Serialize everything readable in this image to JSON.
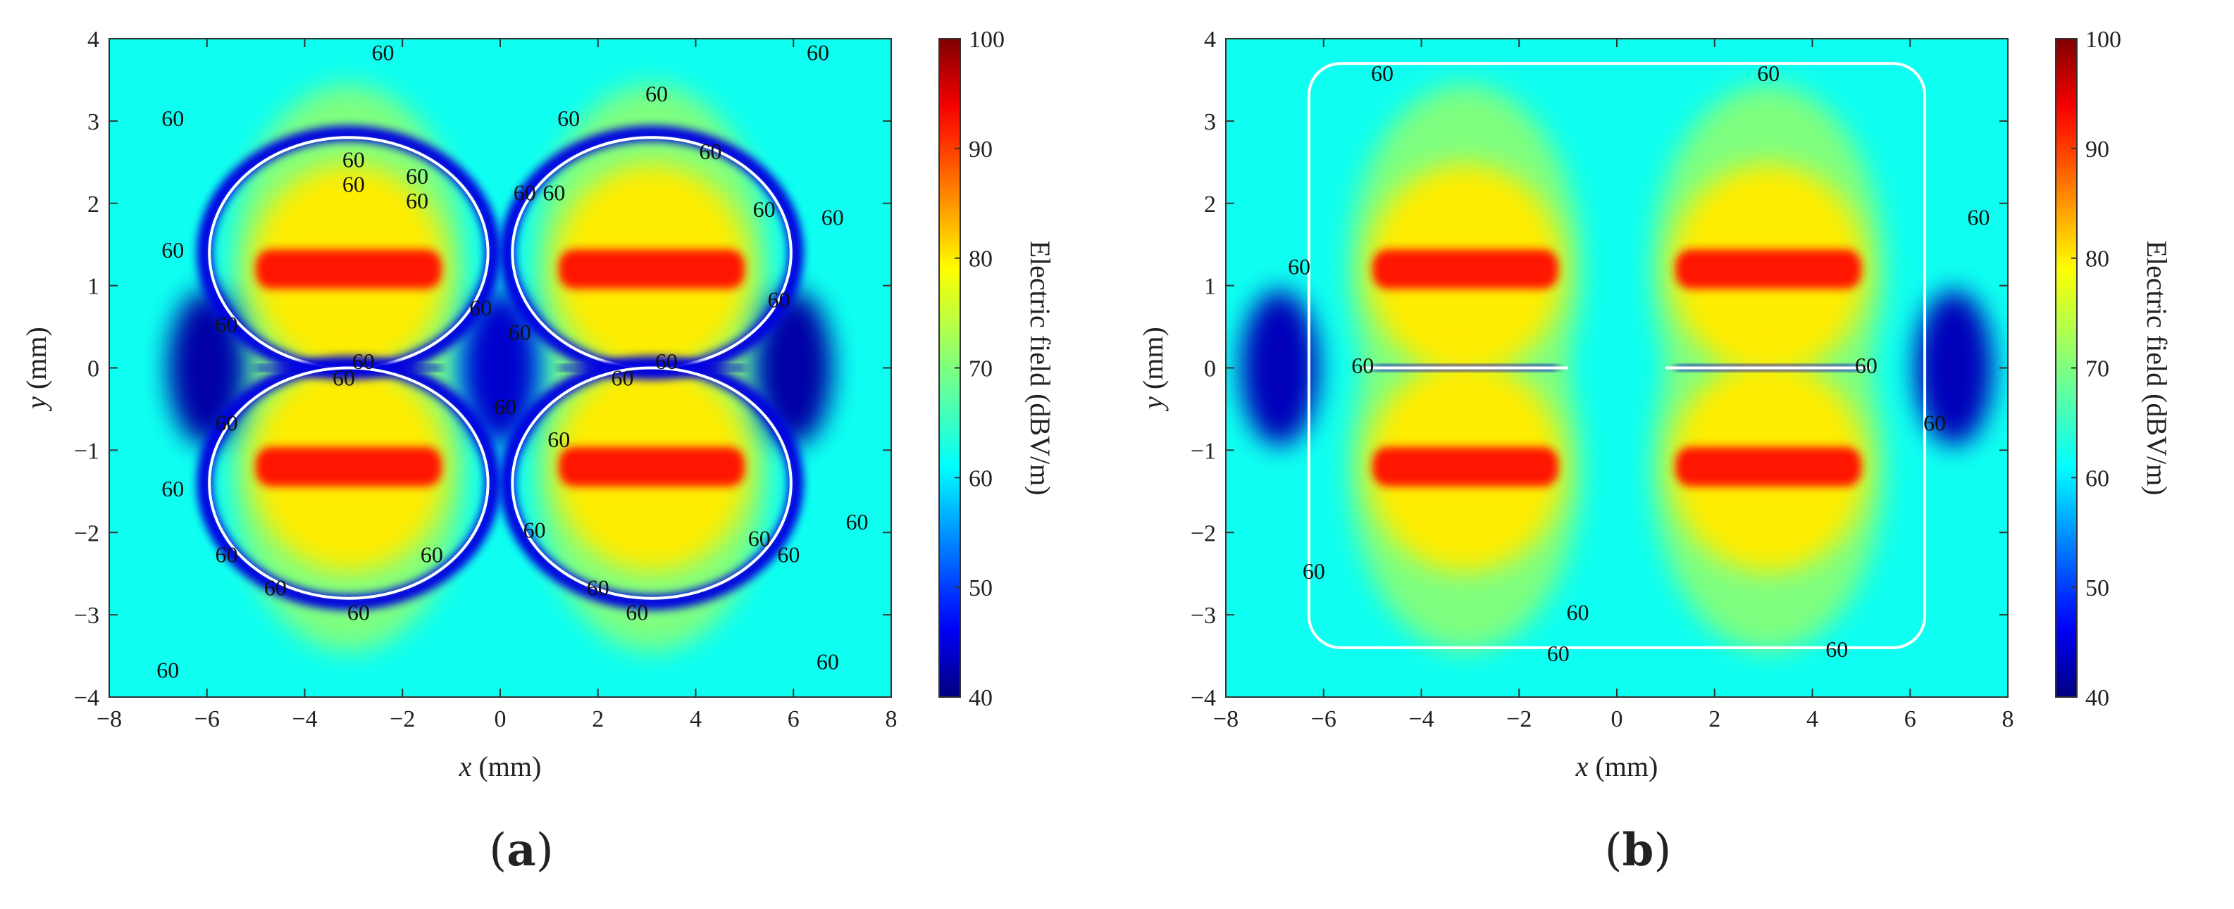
{
  "figure": {
    "panels": [
      {
        "label_open": "(",
        "label_letter": "a",
        "label_close": ")"
      },
      {
        "label_open": "(",
        "label_letter": "b",
        "label_close": ")"
      }
    ]
  },
  "chart_data": [
    {
      "type": "heatmap",
      "xlabel_var": "x",
      "xlabel_unit": " (mm)",
      "ylabel_var": "y",
      "ylabel_unit": " (mm)",
      "colorbar_label": "Electric field (dBV/m)",
      "xlim": [
        -8,
        8
      ],
      "ylim": [
        -4,
        4
      ],
      "clim": [
        40,
        100
      ],
      "xticks": [
        -8,
        -6,
        -4,
        -2,
        0,
        2,
        4,
        6,
        8
      ],
      "yticks": [
        -4,
        -3,
        -2,
        -1,
        0,
        1,
        2,
        3,
        4
      ],
      "cticks": [
        40,
        50,
        60,
        70,
        80,
        90,
        100
      ],
      "colormap": "jet",
      "contour_level": 60,
      "contour_color": "#ffffff",
      "hot_bands": [
        {
          "x": [
            -5,
            -1.2
          ],
          "y": 1.2,
          "peak": 92
        },
        {
          "x": [
            1.2,
            5
          ],
          "y": 1.2,
          "peak": 92
        },
        {
          "x": [
            -5,
            -1.2
          ],
          "y": -1.2,
          "peak": 92
        },
        {
          "x": [
            1.2,
            5
          ],
          "y": -1.2,
          "peak": 92
        }
      ],
      "minima": [
        {
          "x": -6,
          "y": 0,
          "value": 42
        },
        {
          "x": 6,
          "y": 0,
          "value": 42
        },
        {
          "x": 0,
          "y": 0,
          "value": 44
        }
      ],
      "contour_labels": [
        {
          "x": -2.4,
          "y": 3.8
        },
        {
          "x": -6.7,
          "y": 3.0
        },
        {
          "x": -3.0,
          "y": 2.5
        },
        {
          "x": -1.7,
          "y": 2.3
        },
        {
          "x": -3.0,
          "y": 2.2
        },
        {
          "x": -1.7,
          "y": 2.0
        },
        {
          "x": -6.7,
          "y": 1.4
        },
        {
          "x": 3.2,
          "y": 3.3
        },
        {
          "x": 1.4,
          "y": 3.0
        },
        {
          "x": 4.3,
          "y": 2.6
        },
        {
          "x": 6.5,
          "y": 3.8
        },
        {
          "x": 0.5,
          "y": 2.1
        },
        {
          "x": 1.1,
          "y": 2.1
        },
        {
          "x": 5.4,
          "y": 1.9
        },
        {
          "x": 6.8,
          "y": 1.8
        },
        {
          "x": -0.4,
          "y": 0.7
        },
        {
          "x": -5.6,
          "y": 0.5
        },
        {
          "x": 0.4,
          "y": 0.4
        },
        {
          "x": 5.7,
          "y": 0.8
        },
        {
          "x": -2.8,
          "y": 0.05
        },
        {
          "x": -3.2,
          "y": -0.15
        },
        {
          "x": 3.4,
          "y": 0.05
        },
        {
          "x": 2.5,
          "y": -0.15
        },
        {
          "x": 0.1,
          "y": -0.5
        },
        {
          "x": -5.6,
          "y": -0.7
        },
        {
          "x": -6.7,
          "y": -1.5
        },
        {
          "x": 1.2,
          "y": -0.9
        },
        {
          "x": -5.6,
          "y": -2.3
        },
        {
          "x": -1.4,
          "y": -2.3
        },
        {
          "x": -4.6,
          "y": -2.7
        },
        {
          "x": 0.7,
          "y": -2.0
        },
        {
          "x": -2.9,
          "y": -3.0
        },
        {
          "x": 2.0,
          "y": -2.7
        },
        {
          "x": 2.8,
          "y": -3.0
        },
        {
          "x": 5.3,
          "y": -2.1
        },
        {
          "x": 5.9,
          "y": -2.3
        },
        {
          "x": 7.3,
          "y": -1.9
        },
        {
          "x": -6.8,
          "y": -3.7
        },
        {
          "x": 6.7,
          "y": -3.6
        }
      ]
    },
    {
      "type": "heatmap",
      "xlabel_var": "x",
      "xlabel_unit": " (mm)",
      "ylabel_var": "y",
      "ylabel_unit": " (mm)",
      "colorbar_label": "Electric field (dBV/m)",
      "xlim": [
        -8,
        8
      ],
      "ylim": [
        -4,
        4
      ],
      "clim": [
        40,
        100
      ],
      "xticks": [
        -8,
        -6,
        -4,
        -2,
        0,
        2,
        4,
        6,
        8
      ],
      "yticks": [
        -4,
        -3,
        -2,
        -1,
        0,
        1,
        2,
        3,
        4
      ],
      "cticks": [
        40,
        50,
        60,
        70,
        80,
        90,
        100
      ],
      "colormap": "jet",
      "contour_level": 60,
      "contour_color": "#ffffff",
      "hot_bands": [
        {
          "x": [
            -5,
            -1.2
          ],
          "y": 1.2,
          "peak": 92
        },
        {
          "x": [
            1.2,
            5
          ],
          "y": 1.2,
          "peak": 92
        },
        {
          "x": [
            -5,
            -1.2
          ],
          "y": -1.2,
          "peak": 92
        },
        {
          "x": [
            1.2,
            5
          ],
          "y": -1.2,
          "peak": 92
        }
      ],
      "minima": [
        {
          "x": -6.9,
          "y": 0,
          "value": 43
        },
        {
          "x": 6.9,
          "y": 0,
          "value": 43
        }
      ],
      "contour_labels": [
        {
          "x": -4.8,
          "y": 3.55
        },
        {
          "x": 3.1,
          "y": 3.55
        },
        {
          "x": 7.4,
          "y": 1.8
        },
        {
          "x": -6.5,
          "y": 1.2
        },
        {
          "x": -5.2,
          "y": 0.0
        },
        {
          "x": 5.1,
          "y": 0.0
        },
        {
          "x": 6.5,
          "y": -0.7
        },
        {
          "x": -6.2,
          "y": -2.5
        },
        {
          "x": -0.8,
          "y": -3.0
        },
        {
          "x": -1.2,
          "y": -3.5
        },
        {
          "x": 4.5,
          "y": -3.45
        }
      ]
    }
  ]
}
